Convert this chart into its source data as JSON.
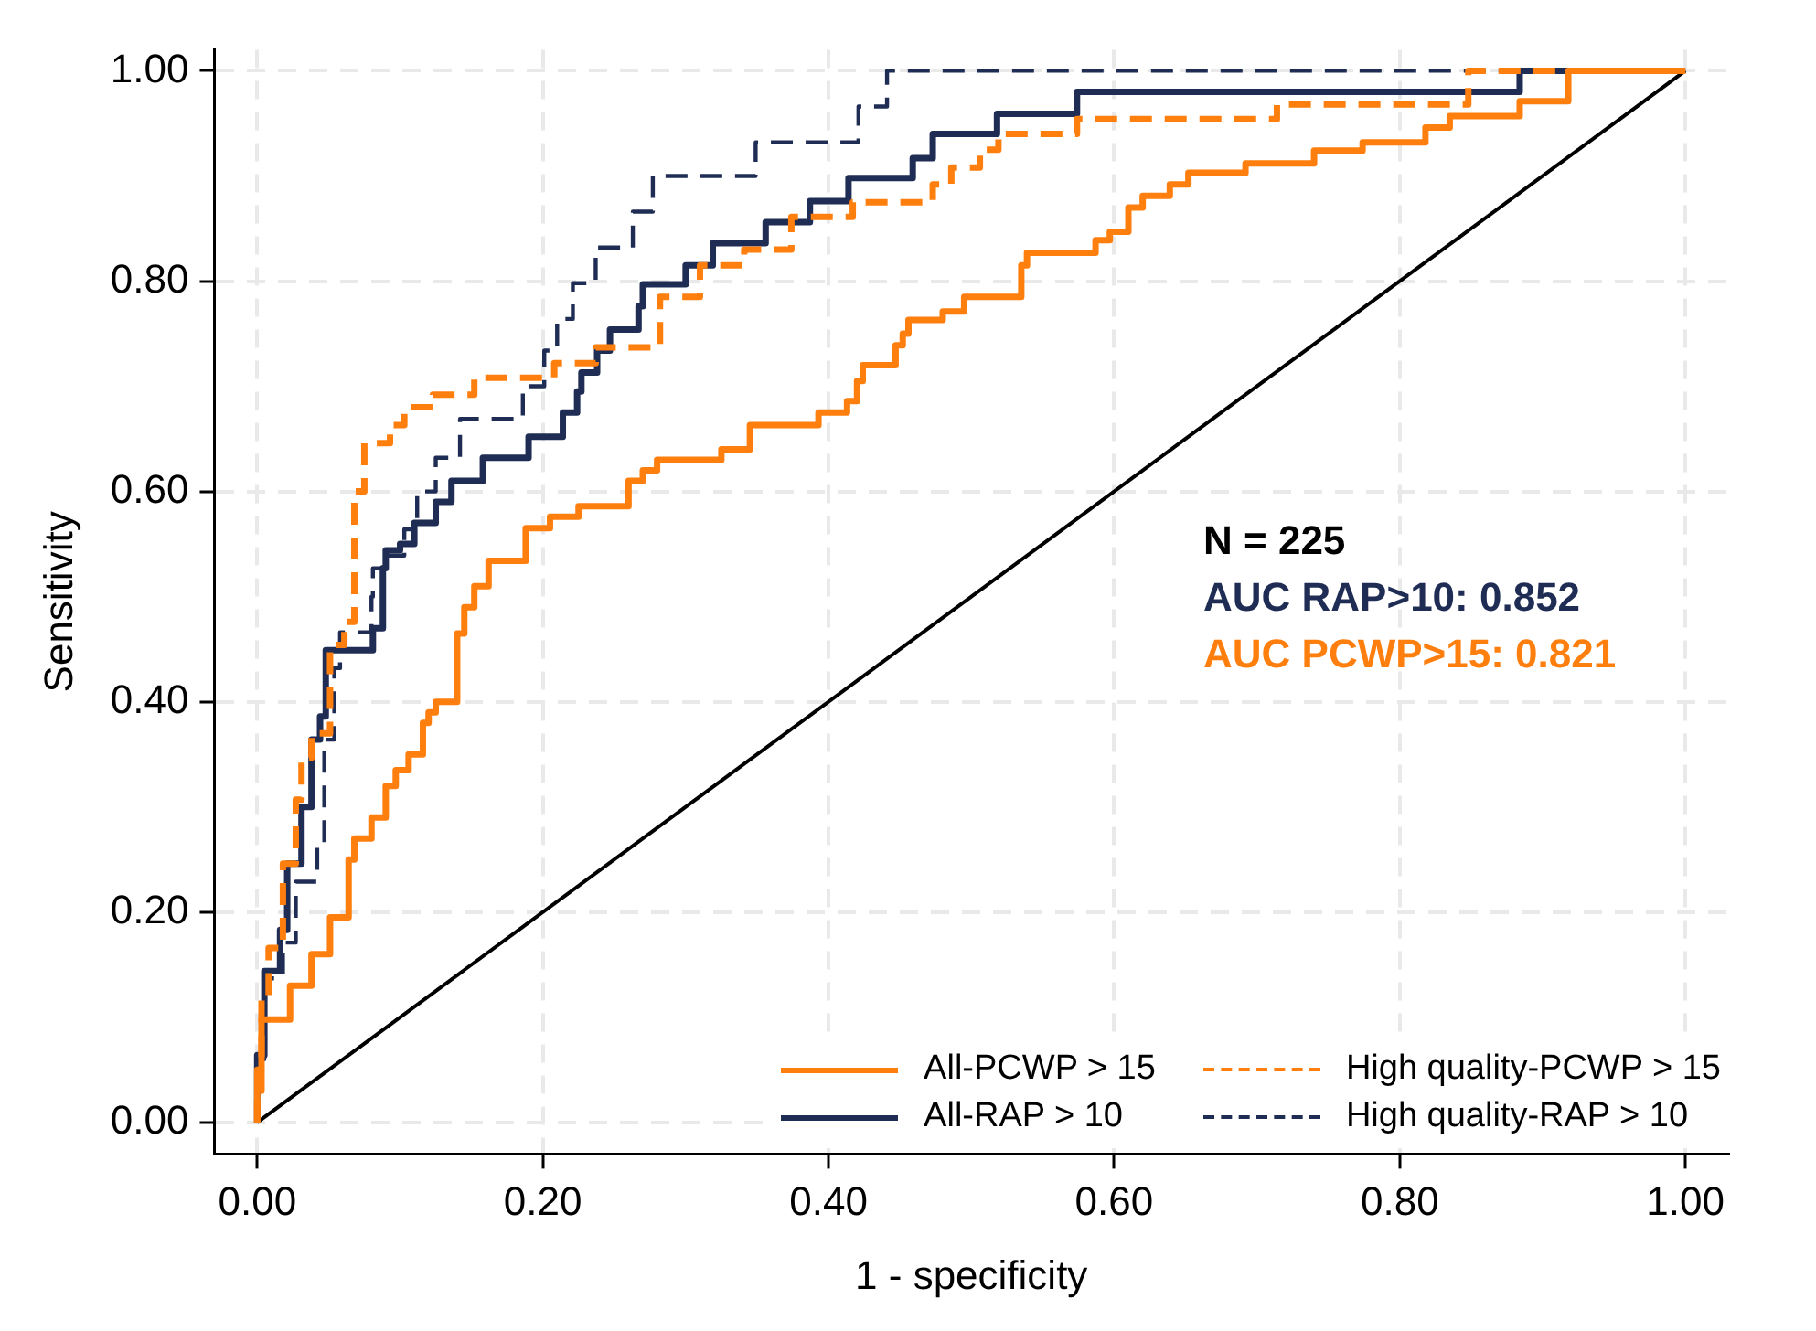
{
  "chart_data": {
    "type": "step",
    "xlabel": "1 - specificity",
    "ylabel": "Sensitivity",
    "xlim": [
      -0.03,
      1.03
    ],
    "ylim": [
      -0.03,
      1.02
    ],
    "xticks": [
      {
        "value": 0,
        "label": "0.00"
      },
      {
        "value": 0.2,
        "label": "0.20"
      },
      {
        "value": 0.4,
        "label": "0.40"
      },
      {
        "value": 0.6,
        "label": "0.60"
      },
      {
        "value": 0.8,
        "label": "0.80"
      },
      {
        "value": 1,
        "label": "1.00"
      }
    ],
    "yticks": [
      {
        "value": 0,
        "label": "0.00"
      },
      {
        "value": 0.2,
        "label": "0.20"
      },
      {
        "value": 0.4,
        "label": "0.40"
      },
      {
        "value": 0.6,
        "label": "0.60"
      },
      {
        "value": 0.8,
        "label": "0.80"
      },
      {
        "value": 1,
        "label": "1.00"
      }
    ],
    "grid": true,
    "legend": "bottom right",
    "series": [
      {
        "name": "All-PCWP > 15",
        "color": "#ff7f0e",
        "line_style": "solid",
        "x": [
          0,
          0.003,
          0.023,
          0.038,
          0.051,
          0.064,
          0.068,
          0.08,
          0.09,
          0.097,
          0.106,
          0.116,
          0.12,
          0.125,
          0.14,
          0.145,
          0.152,
          0.162,
          0.188,
          0.205,
          0.225,
          0.26,
          0.27,
          0.28,
          0.325,
          0.345,
          0.393,
          0.413,
          0.42,
          0.424,
          0.447,
          0.452,
          0.456,
          0.48,
          0.495,
          0.535,
          0.539,
          0.587,
          0.597,
          0.61,
          0.62,
          0.639,
          0.652,
          0.692,
          0.74,
          0.774,
          0.818,
          0.835,
          0.884,
          0.918,
          0.927,
          1
        ],
        "values": [
          0,
          0.05,
          0.098,
          0.13,
          0.16,
          0.195,
          0.25,
          0.27,
          0.29,
          0.32,
          0.335,
          0.35,
          0.38,
          0.39,
          0.4,
          0.465,
          0.49,
          0.51,
          0.534,
          0.565,
          0.576,
          0.586,
          0.61,
          0.62,
          0.63,
          0.64,
          0.663,
          0.675,
          0.686,
          0.705,
          0.72,
          0.739,
          0.75,
          0.763,
          0.771,
          0.785,
          0.815,
          0.827,
          0.839,
          0.847,
          0.87,
          0.881,
          0.892,
          0.903,
          0.912,
          0.924,
          0.932,
          0.946,
          0.957,
          0.971,
          1,
          1
        ]
      },
      {
        "name": "High quality-PCWP > 15",
        "color": "#ff7f0e",
        "line_style": "dashed",
        "x": [
          0,
          0.003,
          0.008,
          0.018,
          0.027,
          0.031,
          0.038,
          0.051,
          0.061,
          0.068,
          0.075,
          0.093,
          0.103,
          0.123,
          0.152,
          0.208,
          0.237,
          0.282,
          0.31,
          0.341,
          0.374,
          0.417,
          0.473,
          0.486,
          0.506,
          0.519,
          0.574,
          0.714,
          0.848,
          0.9,
          1
        ],
        "values": [
          0,
          0.03,
          0.12,
          0.166,
          0.246,
          0.307,
          0.347,
          0.37,
          0.454,
          0.476,
          0.6,
          0.646,
          0.663,
          0.68,
          0.692,
          0.708,
          0.722,
          0.737,
          0.785,
          0.815,
          0.83,
          0.861,
          0.875,
          0.892,
          0.908,
          0.925,
          0.94,
          0.954,
          0.968,
          1,
          1
        ]
      },
      {
        "name": "All-RAP > 10",
        "color": "#1f2d55",
        "line_style": "solid",
        "x": [
          0,
          0.005,
          0.016,
          0.021,
          0.031,
          0.038,
          0.044,
          0.048,
          0.081,
          0.088,
          0.09,
          0.1,
          0.11,
          0.125,
          0.136,
          0.158,
          0.19,
          0.214,
          0.224,
          0.227,
          0.238,
          0.247,
          0.267,
          0.27,
          0.3,
          0.319,
          0.356,
          0.387,
          0.414,
          0.459,
          0.473,
          0.518,
          0.574,
          0.884,
          0.931,
          1
        ],
        "values": [
          0,
          0.064,
          0.144,
          0.183,
          0.246,
          0.3,
          0.364,
          0.386,
          0.449,
          0.47,
          0.527,
          0.544,
          0.55,
          0.57,
          0.59,
          0.61,
          0.632,
          0.652,
          0.675,
          0.695,
          0.713,
          0.734,
          0.754,
          0.776,
          0.797,
          0.815,
          0.836,
          0.856,
          0.876,
          0.898,
          0.917,
          0.94,
          0.959,
          0.98,
          1,
          1
        ]
      },
      {
        "name": "High quality-RAP > 10",
        "color": "#1f2d55",
        "line_style": "dashed",
        "x": [
          0,
          0.005,
          0.018,
          0.027,
          0.042,
          0.047,
          0.054,
          0.058,
          0.08,
          0.081,
          0.088,
          0.103,
          0.112,
          0.125,
          0.142,
          0.186,
          0.201,
          0.21,
          0.221,
          0.237,
          0.263,
          0.277,
          0.349,
          0.421,
          0.441,
          0.548,
          1
        ],
        "values": [
          0,
          0.06,
          0.137,
          0.171,
          0.229,
          0.263,
          0.364,
          0.432,
          0.466,
          0.5,
          0.527,
          0.539,
          0.564,
          0.6,
          0.632,
          0.669,
          0.7,
          0.734,
          0.764,
          0.798,
          0.832,
          0.866,
          0.9,
          0.932,
          0.966,
          1,
          1
        ]
      },
      {
        "type": "line",
        "color": "#000000",
        "line_style": "solid",
        "x": [
          0,
          1
        ],
        "values": [
          0,
          1
        ]
      }
    ],
    "annotations": [
      "N = 225",
      "AUC RAP>10: 0.852",
      "AUC PCWP>15: 0.821"
    ]
  }
}
